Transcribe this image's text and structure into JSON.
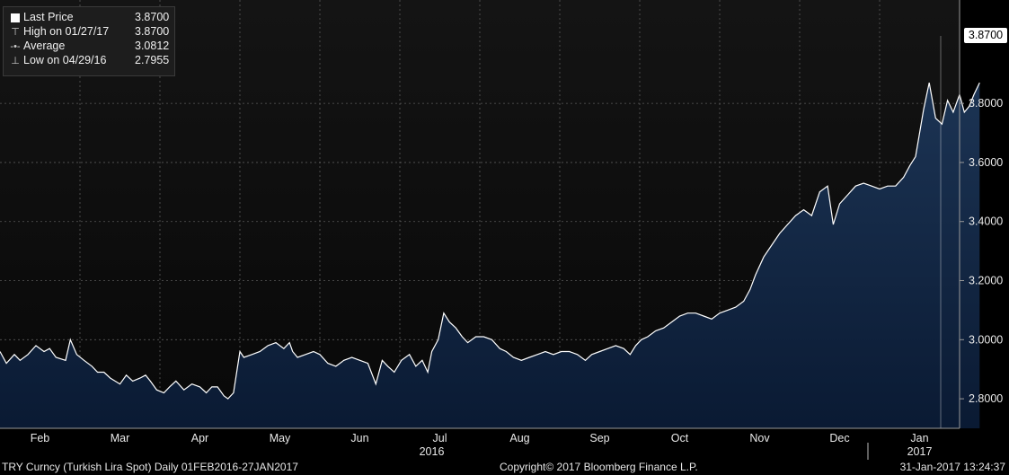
{
  "legend": {
    "rows": [
      {
        "icon": "last-price-box-icon",
        "label": "Last Price",
        "value": "3.8700"
      },
      {
        "icon": "high-marker-icon",
        "label": "High on 01/27/17",
        "value": "3.8700"
      },
      {
        "icon": "average-marker-icon",
        "label": "Average",
        "value": "3.0812"
      },
      {
        "icon": "low-marker-icon",
        "label": "Low on 04/29/16",
        "value": "2.7955"
      }
    ]
  },
  "last_price_tag": "3.8700",
  "footer": {
    "left": "TRY Curncy (Turkish Lira Spot)  Daily 01FEB2016-27JAN2017",
    "center": "Copyright© 2017 Bloomberg Finance L.P.",
    "right": "31-Jan-2017 13:24:37"
  },
  "colors": {
    "background": "#000000",
    "plot_top": "#141414",
    "area_top": "#1c3454",
    "area_bottom": "#0a1a33",
    "line": "#ffffff",
    "grid": "#5a5a5a"
  },
  "chart_data": {
    "type": "area",
    "title": "",
    "xlabel": "",
    "ylabel": "",
    "ylim": [
      2.7,
      4.15
    ],
    "grid": true,
    "legend_placement": "top-left",
    "y_ticks": [
      "2.8000",
      "3.0000",
      "3.2000",
      "3.4000",
      "3.6000",
      "3.8000"
    ],
    "y_tick_values": [
      2.8,
      3.0,
      3.2,
      3.4,
      3.6,
      3.8
    ],
    "x_ticks": [
      {
        "label": "Feb",
        "pos": 0.5
      },
      {
        "label": "Mar",
        "pos": 1.5
      },
      {
        "label": "Apr",
        "pos": 2.5
      },
      {
        "label": "May",
        "pos": 3.5
      },
      {
        "label": "Jun",
        "pos": 4.5
      },
      {
        "label": "Jul",
        "pos": 5.5,
        "sublabel": "2016"
      },
      {
        "label": "Aug",
        "pos": 6.5
      },
      {
        "label": "Sep",
        "pos": 7.5
      },
      {
        "label": "Oct",
        "pos": 8.5
      },
      {
        "label": "Nov",
        "pos": 9.5
      },
      {
        "label": "Dec",
        "pos": 10.5
      },
      {
        "label": "Jan",
        "pos": 11.5,
        "sublabel": "2017"
      }
    ],
    "x_domain": [
      0,
      12
    ],
    "series": [
      {
        "values": [
          [
            0.0,
            2.96
          ],
          [
            0.08,
            2.92
          ],
          [
            0.18,
            2.95
          ],
          [
            0.25,
            2.93
          ],
          [
            0.35,
            2.95
          ],
          [
            0.45,
            2.98
          ],
          [
            0.55,
            2.96
          ],
          [
            0.62,
            2.97
          ],
          [
            0.7,
            2.94
          ],
          [
            0.82,
            2.93
          ],
          [
            0.88,
            3.0
          ],
          [
            0.96,
            2.95
          ],
          [
            1.05,
            2.93
          ],
          [
            1.15,
            2.91
          ],
          [
            1.22,
            2.89
          ],
          [
            1.3,
            2.89
          ],
          [
            1.38,
            2.87
          ],
          [
            1.5,
            2.85
          ],
          [
            1.58,
            2.88
          ],
          [
            1.66,
            2.86
          ],
          [
            1.75,
            2.87
          ],
          [
            1.82,
            2.88
          ],
          [
            1.88,
            2.86
          ],
          [
            1.96,
            2.83
          ],
          [
            2.05,
            2.82
          ],
          [
            2.12,
            2.84
          ],
          [
            2.2,
            2.86
          ],
          [
            2.3,
            2.83
          ],
          [
            2.4,
            2.85
          ],
          [
            2.5,
            2.84
          ],
          [
            2.58,
            2.82
          ],
          [
            2.65,
            2.84
          ],
          [
            2.72,
            2.84
          ],
          [
            2.8,
            2.81
          ],
          [
            2.85,
            2.8
          ],
          [
            2.92,
            2.82
          ],
          [
            3.0,
            2.96
          ],
          [
            3.05,
            2.94
          ],
          [
            3.15,
            2.95
          ],
          [
            3.25,
            2.96
          ],
          [
            3.35,
            2.98
          ],
          [
            3.45,
            2.99
          ],
          [
            3.55,
            2.97
          ],
          [
            3.62,
            2.99
          ],
          [
            3.66,
            2.96
          ],
          [
            3.72,
            2.94
          ],
          [
            3.82,
            2.95
          ],
          [
            3.92,
            2.96
          ],
          [
            4.0,
            2.95
          ],
          [
            4.1,
            2.92
          ],
          [
            4.2,
            2.91
          ],
          [
            4.3,
            2.93
          ],
          [
            4.4,
            2.94
          ],
          [
            4.5,
            2.93
          ],
          [
            4.6,
            2.92
          ],
          [
            4.7,
            2.85
          ],
          [
            4.78,
            2.93
          ],
          [
            4.85,
            2.91
          ],
          [
            4.93,
            2.89
          ],
          [
            5.02,
            2.93
          ],
          [
            5.12,
            2.95
          ],
          [
            5.2,
            2.91
          ],
          [
            5.28,
            2.93
          ],
          [
            5.35,
            2.89
          ],
          [
            5.4,
            2.96
          ],
          [
            5.48,
            3.0
          ],
          [
            5.55,
            3.09
          ],
          [
            5.62,
            3.06
          ],
          [
            5.7,
            3.04
          ],
          [
            5.78,
            3.01
          ],
          [
            5.85,
            2.99
          ],
          [
            5.95,
            3.01
          ],
          [
            6.05,
            3.01
          ],
          [
            6.15,
            3.0
          ],
          [
            6.25,
            2.97
          ],
          [
            6.33,
            2.96
          ],
          [
            6.42,
            2.94
          ],
          [
            6.52,
            2.93
          ],
          [
            6.62,
            2.94
          ],
          [
            6.72,
            2.95
          ],
          [
            6.82,
            2.96
          ],
          [
            6.92,
            2.95
          ],
          [
            7.02,
            2.96
          ],
          [
            7.12,
            2.96
          ],
          [
            7.22,
            2.95
          ],
          [
            7.32,
            2.93
          ],
          [
            7.4,
            2.95
          ],
          [
            7.5,
            2.96
          ],
          [
            7.6,
            2.97
          ],
          [
            7.7,
            2.98
          ],
          [
            7.8,
            2.97
          ],
          [
            7.88,
            2.95
          ],
          [
            7.95,
            2.98
          ],
          [
            8.02,
            3.0
          ],
          [
            8.1,
            3.01
          ],
          [
            8.2,
            3.03
          ],
          [
            8.3,
            3.04
          ],
          [
            8.4,
            3.06
          ],
          [
            8.5,
            3.08
          ],
          [
            8.6,
            3.09
          ],
          [
            8.7,
            3.09
          ],
          [
            8.8,
            3.08
          ],
          [
            8.9,
            3.07
          ],
          [
            9.0,
            3.09
          ],
          [
            9.1,
            3.1
          ],
          [
            9.2,
            3.11
          ],
          [
            9.3,
            3.13
          ],
          [
            9.38,
            3.17
          ],
          [
            9.45,
            3.22
          ],
          [
            9.55,
            3.28
          ],
          [
            9.65,
            3.32
          ],
          [
            9.75,
            3.36
          ],
          [
            9.85,
            3.39
          ],
          [
            9.95,
            3.42
          ],
          [
            10.05,
            3.44
          ],
          [
            10.15,
            3.42
          ],
          [
            10.25,
            3.5
          ],
          [
            10.35,
            3.52
          ],
          [
            10.42,
            3.39
          ],
          [
            10.5,
            3.46
          ],
          [
            10.6,
            3.49
          ],
          [
            10.7,
            3.52
          ],
          [
            10.8,
            3.53
          ],
          [
            10.9,
            3.52
          ],
          [
            11.0,
            3.51
          ],
          [
            11.1,
            3.52
          ],
          [
            11.2,
            3.52
          ],
          [
            11.3,
            3.55
          ],
          [
            11.38,
            3.59
          ],
          [
            11.45,
            3.62
          ],
          [
            11.55,
            3.78
          ],
          [
            11.62,
            3.87
          ],
          [
            11.7,
            3.75
          ],
          [
            11.78,
            3.73
          ],
          [
            11.85,
            3.81
          ],
          [
            11.92,
            3.77
          ],
          [
            12.0,
            3.83
          ],
          [
            12.06,
            3.77
          ],
          [
            12.12,
            3.79
          ],
          [
            12.18,
            3.83
          ],
          [
            12.25,
            3.87
          ]
        ]
      }
    ]
  }
}
